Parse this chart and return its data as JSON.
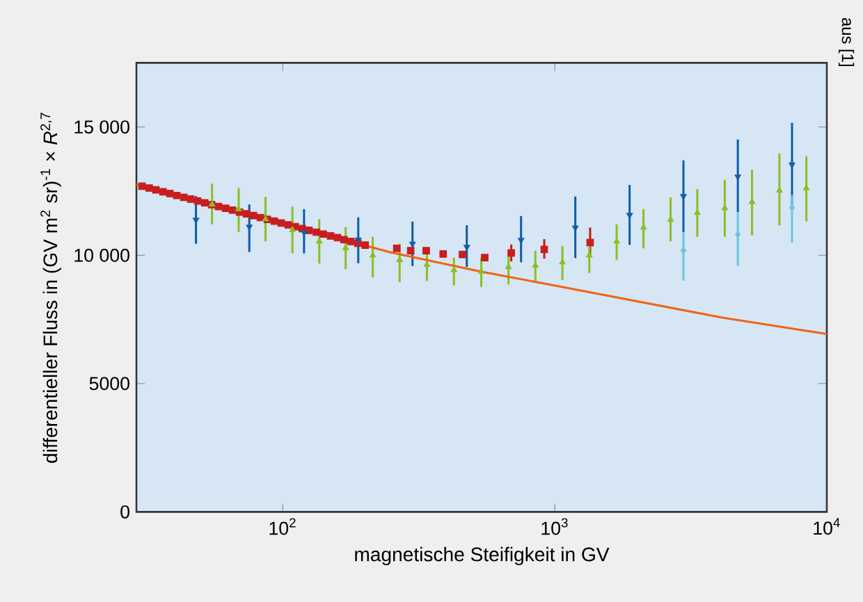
{
  "chart_data": {
    "type": "scatter",
    "xlabel": "magnetische Steifigkeit in GV",
    "ylabel": "differentieller Fluss in (GV m$^{2}$ sr)$^{-1}$ × *R*$^{2,7}$",
    "annotations": [
      "aus [1]"
    ],
    "log": "x",
    "xlim": [
      29,
      10000
    ],
    "xticks": [
      {
        "value": 100,
        "label": "10$^{2}$"
      },
      {
        "value": 1000,
        "label": "10$^{3}$"
      },
      {
        "value": 10000,
        "label": "10$^{4}$"
      }
    ],
    "ylim": [
      0,
      17500
    ],
    "yticks": [
      0,
      5000,
      {
        "value": 10000,
        "label": "10 000"
      },
      {
        "value": 15000,
        "label": "15 000"
      }
    ],
    "series": [
      {
        "type": "scatter",
        "marker": "triangle",
        "color": "#8cbf26",
        "x": [
          55.0,
          68.9,
          86.5,
          108.6,
          136.3,
          170.4,
          214.3,
          269,
          339,
          426,
          537,
          676,
          849,
          1067,
          1340,
          1689,
          2119,
          2665,
          3342,
          4216,
          5310,
          6697,
          8411
        ],
        "values": [
          11980,
          11800,
          11410,
          10990,
          10540,
          10285,
          10000,
          9815,
          9635,
          9420,
          9365,
          9545,
          9600,
          9730,
          10000,
          10540,
          11080,
          11385,
          11655,
          11840,
          12075,
          12525,
          12615
        ],
        "errors": [
          [
            11205,
            12790
          ],
          [
            10910,
            12615
          ],
          [
            10540,
            12275
          ],
          [
            10080,
            11890
          ],
          [
            9675,
            11410
          ],
          [
            9460,
            11100
          ],
          [
            9135,
            10720
          ],
          [
            8950,
            10450
          ],
          [
            9000,
            10270
          ],
          [
            8825,
            9910
          ],
          [
            8770,
            9910
          ],
          [
            8865,
            10000
          ],
          [
            8950,
            10180
          ],
          [
            9040,
            10360
          ],
          [
            9310,
            10575
          ],
          [
            9815,
            11205
          ],
          [
            10270,
            11800
          ],
          [
            10540,
            12250
          ],
          [
            10720,
            12575
          ],
          [
            10720,
            12940
          ],
          [
            10775,
            13335
          ],
          [
            11170,
            13970
          ],
          [
            11315,
            13860
          ]
        ]
      },
      {
        "type": "scatter",
        "marker": "triangle-down",
        "color": "#1060a8",
        "x": [
          48.0,
          75.4,
          119.8,
          189.6,
          300,
          475,
          752,
          1190,
          1884,
          2972,
          4710,
          7450
        ],
        "values": [
          11385,
          11115,
          10900,
          10610,
          10450,
          10325,
          10595,
          11080,
          11570,
          12305,
          13065,
          13535
        ],
        "errors": [
          [
            10450,
            12305
          ],
          [
            10125,
            11980
          ],
          [
            10070,
            11800
          ],
          [
            9690,
            11480
          ],
          [
            9580,
            11315
          ],
          [
            9545,
            11170
          ],
          [
            9730,
            11530
          ],
          [
            9890,
            12290
          ],
          [
            10405,
            12740
          ],
          [
            10900,
            13700
          ],
          [
            11675,
            14510
          ],
          [
            11980,
            15160
          ]
        ]
      },
      {
        "type": "scatter",
        "marker": "diamond",
        "color": "#6ec6e0",
        "x": [
          2972,
          4710,
          7450
        ],
        "values": [
          10180,
          10810,
          11855
        ],
        "errors": [
          [
            9005,
            10900
          ],
          [
            9580,
            11655
          ],
          [
            10485,
            12345
          ]
        ]
      },
      {
        "type": "scatter",
        "marker": "square",
        "color": "#c81e1e",
        "x": [
          30.4,
          32.3,
          34.2,
          36.3,
          38.5,
          40.8,
          43.3,
          45.9,
          48.7,
          51.7,
          54.8,
          58.1,
          61.7,
          65.4,
          69.4,
          73.6,
          78.1,
          82.8,
          87.8,
          93.2,
          98.8,
          104.8,
          111.2,
          118,
          125,
          133,
          141,
          150,
          159,
          168,
          178,
          189,
          201,
          262.6,
          295.5,
          337,
          389,
          458,
          553,
          692,
          915,
          1349
        ],
        "values": [
          12690,
          12620,
          12550,
          12475,
          12405,
          12330,
          12260,
          12190,
          12115,
          12045,
          11975,
          11900,
          11830,
          11760,
          11685,
          11615,
          11545,
          11470,
          11400,
          11330,
          11255,
          11185,
          11115,
          11040,
          10970,
          10900,
          10825,
          10755,
          10685,
          10610,
          10540,
          10470,
          10395,
          10270,
          10180,
          10180,
          10050,
          10030,
          9910,
          10090,
          10230,
          10500
        ],
        "errors": [
          null,
          null,
          null,
          null,
          null,
          null,
          null,
          null,
          null,
          null,
          null,
          null,
          null,
          null,
          null,
          null,
          null,
          null,
          null,
          null,
          null,
          null,
          null,
          null,
          null,
          null,
          null,
          null,
          null,
          null,
          null,
          null,
          null,
          null,
          null,
          null,
          null,
          null,
          null,
          [
            9760,
            10420
          ],
          [
            9870,
            10630
          ],
          [
            10010,
            11080
          ]
        ]
      },
      {
        "type": "line",
        "color": "#f06414",
        "x": [
          29,
          100,
          247.6,
          532,
          1000,
          4180,
          10000
        ],
        "values": [
          12750,
          11260,
          10120,
          9370,
          8820,
          7560,
          6930
        ]
      }
    ]
  }
}
